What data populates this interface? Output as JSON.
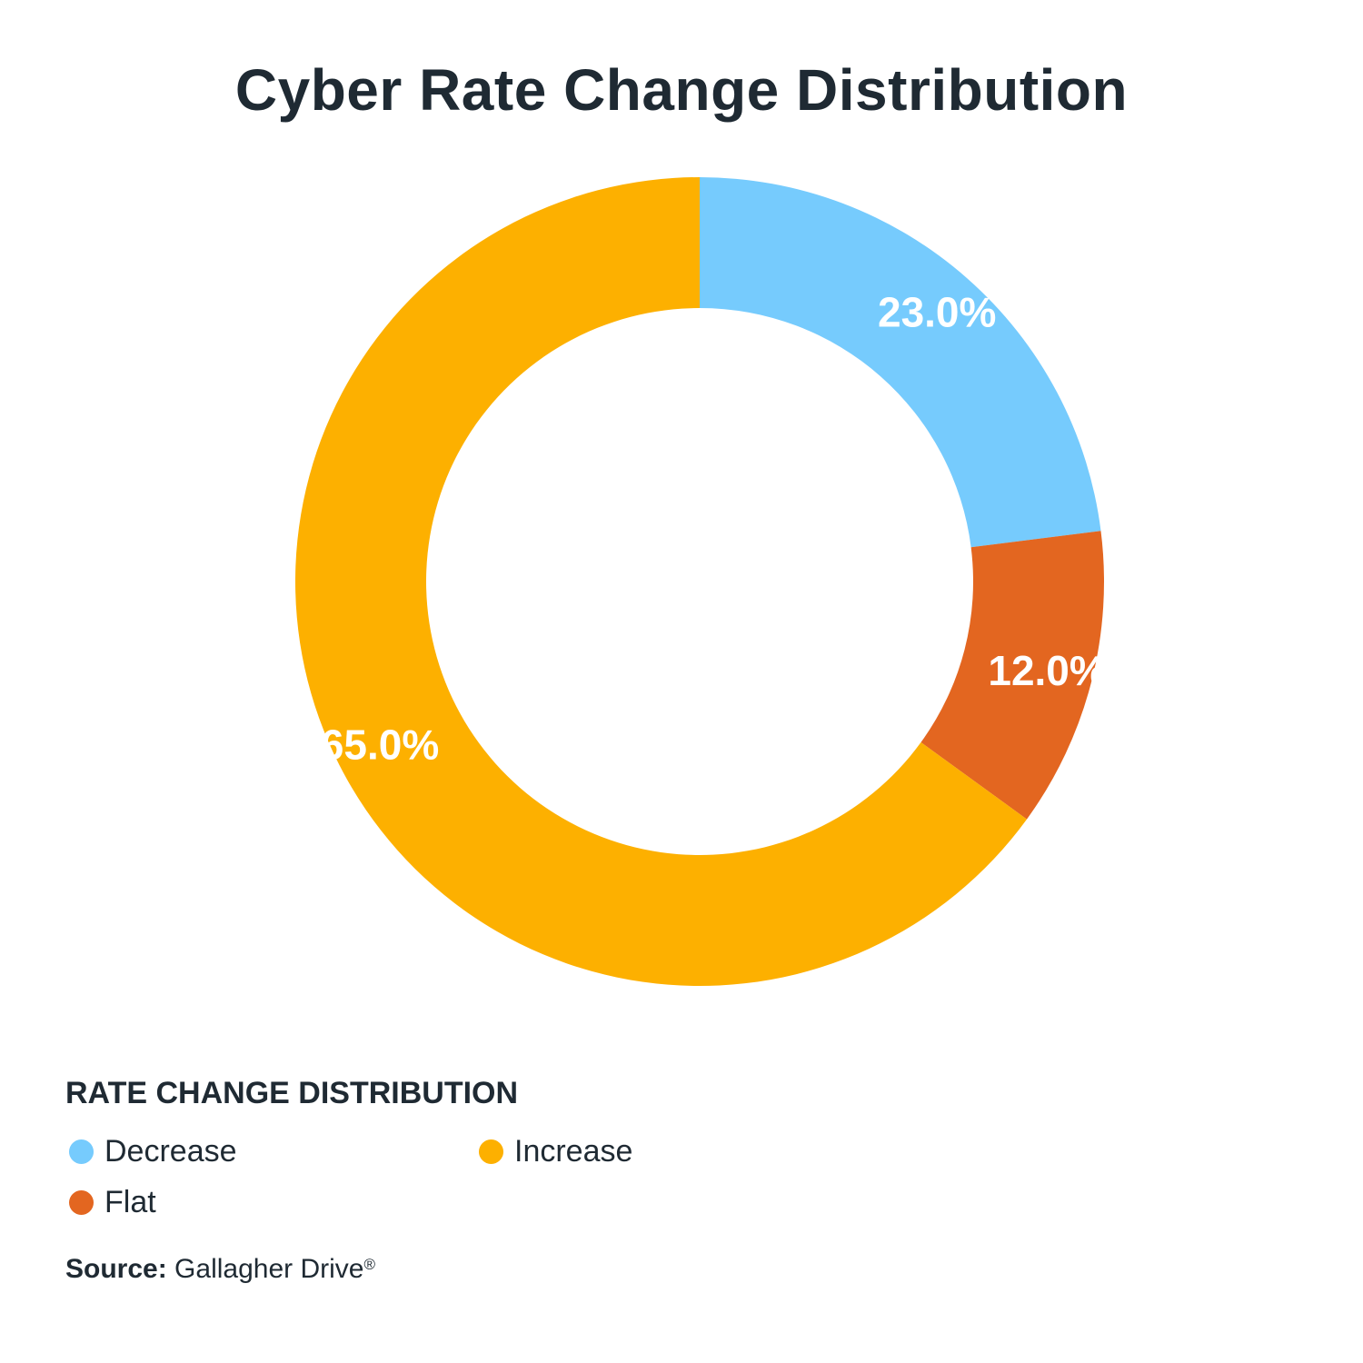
{
  "chart_data": {
    "type": "pie",
    "style": "donut",
    "title": "Cyber Rate Change Distribution",
    "legend_title": "RATE CHANGE DISTRIBUTION",
    "legend_position": "bottom-left",
    "slices": [
      {
        "name": "Decrease",
        "value": 23.0,
        "label": "23.0%",
        "color": "#76cbfd"
      },
      {
        "name": "Flat",
        "value": 12.0,
        "label": "12.0%",
        "color": "#e36620"
      },
      {
        "name": "Increase",
        "value": 65.0,
        "label": "65.0%",
        "color": "#fdb000"
      }
    ],
    "legend_order": [
      "Decrease",
      "Increase",
      "Flat"
    ]
  },
  "source": {
    "label": "Source:",
    "text": "Gallagher Drive",
    "mark": "®"
  }
}
